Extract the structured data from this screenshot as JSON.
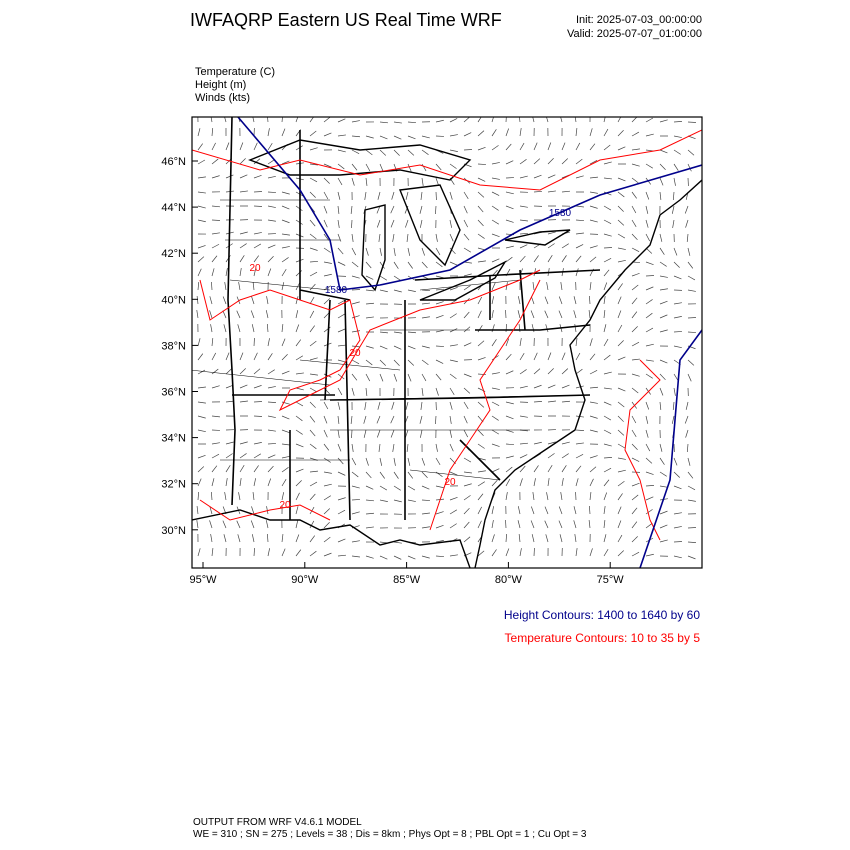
{
  "header": {
    "title": "IWFAQRP Eastern US Real Time WRF",
    "init": "Init: 2025-07-03_00:00:00",
    "valid": "Valid: 2025-07-07_01:00:00"
  },
  "fields": [
    "Temperature   (C)",
    "Height   (m)",
    "Winds   (kts)"
  ],
  "map": {
    "lat_labels": [
      "46°N",
      "44°N",
      "42°N",
      "40°N",
      "38°N",
      "36°N",
      "34°N",
      "32°N",
      "30°N"
    ],
    "lon_labels": [
      "95°W",
      "90°W",
      "85°W",
      "80°W",
      "75°W"
    ],
    "height_labels": [
      "1580",
      "1580"
    ],
    "temperature_labels": [
      "20",
      "20",
      "20",
      "20"
    ]
  },
  "contour_info": {
    "height": "Height Contours: 1400 to 1640 by 60",
    "temperature": "Temperature Contours: 10 to 35 by 5"
  },
  "footer": {
    "line1": "OUTPUT FROM WRF V4.6.1 MODEL",
    "line2": "WE = 310 ; SN = 275 ; Levels = 38 ; Dis = 8km ; Phys Opt = 8 ; PBL Opt = 1 ; Cu Opt = 3"
  }
}
